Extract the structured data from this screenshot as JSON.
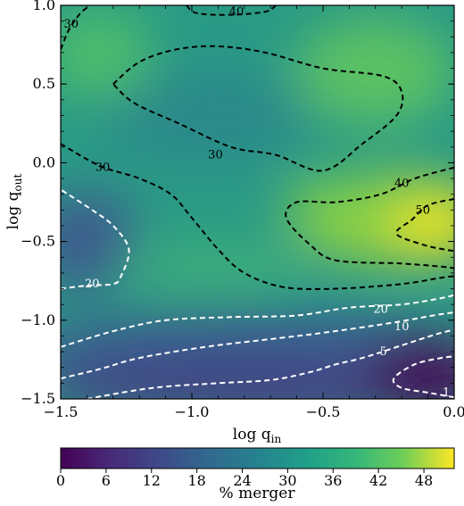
{
  "chart_data": {
    "type": "heatmap",
    "xlabel": "log q",
    "xlabel_sub": "in",
    "ylabel": "log q",
    "ylabel_sub": "out",
    "xlim": [
      -1.5,
      0.0
    ],
    "ylim": [
      -1.5,
      1.0
    ],
    "x_ticks": [
      "−1.5",
      "−1.0",
      "−0.5",
      "0.0"
    ],
    "x_tick_values": [
      -1.5,
      -1.0,
      -0.5,
      0.0
    ],
    "y_ticks": [
      "−1.5",
      "−1.0",
      "−0.5",
      "0.0",
      "0.5",
      "1.0"
    ],
    "y_tick_values": [
      -1.5,
      -1.0,
      -0.5,
      0.0,
      0.5,
      1.0
    ],
    "colorbar": {
      "label": "% merger",
      "range": [
        0,
        52
      ],
      "ticks": [
        "0",
        "6",
        "12",
        "18",
        "24",
        "30",
        "36",
        "42",
        "48"
      ],
      "tick_values": [
        0,
        6,
        12,
        18,
        24,
        30,
        36,
        42,
        48
      ],
      "colormap": "viridis"
    },
    "contours": [
      {
        "level": "40",
        "color": "#000000",
        "label": "40",
        "label_at": [
          -0.83,
          0.96
        ],
        "points": [
          [
            -1.02,
            1.0
          ],
          [
            -0.98,
            0.95
          ],
          [
            -0.85,
            0.94
          ],
          [
            -0.72,
            0.96
          ],
          [
            -0.68,
            1.0
          ]
        ]
      },
      {
        "level": "30",
        "color": "#000000",
        "label": "30",
        "label_at": [
          -1.46,
          0.88
        ],
        "points": [
          [
            -1.5,
            0.72
          ],
          [
            -1.47,
            0.84
          ],
          [
            -1.43,
            0.94
          ],
          [
            -1.39,
            1.0
          ]
        ]
      },
      {
        "level": "30",
        "color": "#000000",
        "label": "30",
        "label_at": [
          -0.91,
          0.05
        ],
        "points": [
          [
            -1.3,
            0.5
          ],
          [
            -1.2,
            0.64
          ],
          [
            -1.06,
            0.72
          ],
          [
            -0.9,
            0.74
          ],
          [
            -0.72,
            0.7
          ],
          [
            -0.5,
            0.6
          ],
          [
            -0.27,
            0.55
          ],
          [
            -0.2,
            0.45
          ],
          [
            -0.22,
            0.3
          ],
          [
            -0.35,
            0.12
          ],
          [
            -0.5,
            -0.05
          ],
          [
            -0.68,
            0.05
          ],
          [
            -0.85,
            0.1
          ],
          [
            -1.05,
            0.25
          ],
          [
            -1.22,
            0.38
          ],
          [
            -1.3,
            0.5
          ]
        ]
      },
      {
        "level": "30",
        "color": "#000000",
        "label": "30",
        "label_at": [
          -1.34,
          -0.03
        ],
        "points": [
          [
            -1.5,
            0.12
          ],
          [
            -1.35,
            -0.02
          ],
          [
            -1.2,
            -0.1
          ],
          [
            -1.08,
            -0.2
          ],
          [
            -1.0,
            -0.35
          ],
          [
            -0.9,
            -0.55
          ],
          [
            -0.8,
            -0.7
          ],
          [
            -0.65,
            -0.79
          ],
          [
            -0.45,
            -0.8
          ],
          [
            -0.2,
            -0.77
          ],
          [
            -0.05,
            -0.73
          ],
          [
            0.0,
            -0.72
          ]
        ]
      },
      {
        "level": "40",
        "color": "#000000",
        "label": "40",
        "label_at": [
          -0.2,
          -0.13
        ],
        "points": [
          [
            0.0,
            -0.03
          ],
          [
            -0.15,
            -0.1
          ],
          [
            -0.28,
            -0.2
          ],
          [
            -0.45,
            -0.25
          ],
          [
            -0.6,
            -0.25
          ],
          [
            -0.64,
            -0.35
          ],
          [
            -0.55,
            -0.52
          ],
          [
            -0.45,
            -0.62
          ],
          [
            -0.2,
            -0.64
          ],
          [
            -0.05,
            -0.66
          ],
          [
            0.0,
            -0.67
          ]
        ]
      },
      {
        "level": "50",
        "color": "#000000",
        "label": "50",
        "label_at": [
          -0.12,
          -0.3
        ],
        "points": [
          [
            0.0,
            -0.23
          ],
          [
            -0.1,
            -0.27
          ],
          [
            -0.16,
            -0.36
          ],
          [
            -0.22,
            -0.45
          ],
          [
            -0.12,
            -0.52
          ],
          [
            -0.04,
            -0.55
          ],
          [
            0.0,
            -0.56
          ]
        ]
      },
      {
        "level": "20",
        "color": "#ffffff",
        "label": "20",
        "label_at": [
          -1.38,
          -0.77
        ],
        "points": [
          [
            -1.5,
            -0.8
          ],
          [
            -1.4,
            -0.78
          ],
          [
            -1.3,
            -0.77
          ],
          [
            -1.27,
            -0.72
          ],
          [
            -1.24,
            -0.55
          ],
          [
            -1.3,
            -0.4
          ],
          [
            -1.38,
            -0.3
          ],
          [
            -1.5,
            -0.17
          ]
        ]
      },
      {
        "level": "20",
        "color": "#ffffff",
        "label": "20",
        "label_at": [
          -0.28,
          -0.93
        ],
        "points": [
          [
            -1.5,
            -1.17
          ],
          [
            -1.3,
            -1.07
          ],
          [
            -1.1,
            -1.0
          ],
          [
            -0.85,
            -0.98
          ],
          [
            -0.6,
            -0.97
          ],
          [
            -0.4,
            -0.92
          ],
          [
            -0.2,
            -0.9
          ],
          [
            -0.05,
            -0.86
          ],
          [
            0.0,
            -0.84
          ]
        ]
      },
      {
        "level": "10",
        "color": "#ffffff",
        "label": "10",
        "label_at": [
          -0.2,
          -1.04
        ],
        "points": [
          [
            -1.5,
            -1.37
          ],
          [
            -1.35,
            -1.31
          ],
          [
            -1.2,
            -1.24
          ],
          [
            -0.95,
            -1.17
          ],
          [
            -0.7,
            -1.12
          ],
          [
            -0.5,
            -1.08
          ],
          [
            -0.25,
            -1.02
          ],
          [
            -0.08,
            -0.97
          ],
          [
            0.0,
            -0.95
          ]
        ]
      },
      {
        "level": "5",
        "color": "#ffffff",
        "label": "5",
        "label_at": [
          -0.27,
          -1.2
        ],
        "points": [
          [
            -1.4,
            -1.5
          ],
          [
            -1.15,
            -1.43
          ],
          [
            -0.9,
            -1.4
          ],
          [
            -0.7,
            -1.38
          ],
          [
            -0.55,
            -1.33
          ],
          [
            -0.45,
            -1.28
          ],
          [
            -0.35,
            -1.24
          ],
          [
            -0.2,
            -1.16
          ],
          [
            -0.07,
            -1.09
          ],
          [
            0.0,
            -1.06
          ]
        ]
      },
      {
        "level": "1",
        "color": "#ffffff",
        "label": "1",
        "label_at": [
          -0.03,
          -1.46
        ],
        "points": [
          [
            0.0,
            -1.49
          ],
          [
            -0.1,
            -1.46
          ],
          [
            -0.2,
            -1.43
          ],
          [
            -0.23,
            -1.37
          ],
          [
            -0.15,
            -1.28
          ],
          [
            -0.05,
            -1.24
          ],
          [
            0.0,
            -1.23
          ]
        ]
      }
    ]
  }
}
